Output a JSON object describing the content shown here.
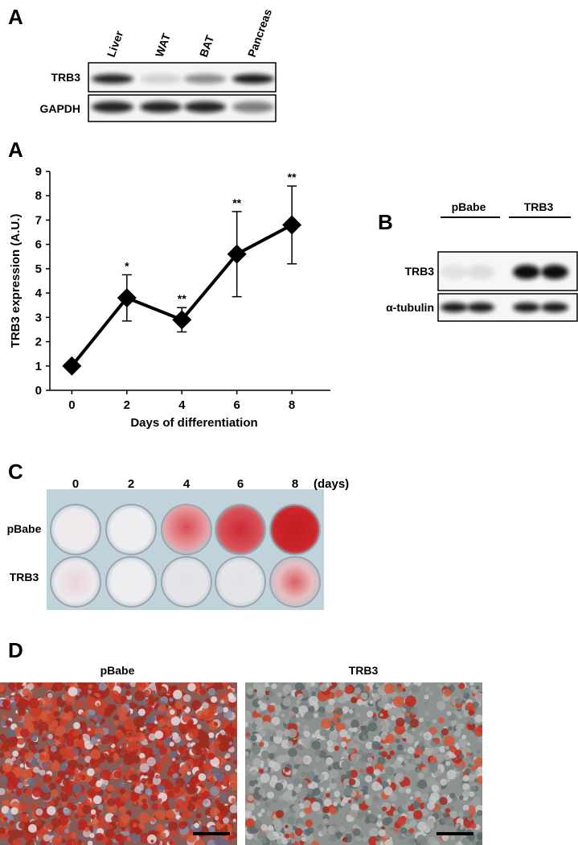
{
  "figure": {
    "panel_a": "A",
    "blot_tissue": {
      "lanes": [
        "Liver",
        "WAT",
        "BAT",
        "Pancreas"
      ],
      "rows": [
        "TRB3",
        "GAPDH"
      ]
    },
    "panel_a2": "A",
    "panel_b": "B",
    "blot_overexpression": {
      "groups": [
        "pBabe",
        "TRB3"
      ],
      "rows": [
        "TRB3",
        "α-tubulin"
      ]
    },
    "panel_c": "C",
    "plate": {
      "days": [
        "0",
        "2",
        "4",
        "6",
        "8"
      ],
      "unit": "(days)",
      "rows": [
        "pBabe",
        "TRB3"
      ]
    },
    "panel_d": "D",
    "micrographs": [
      "pBabe",
      "TRB3"
    ]
  },
  "chart_data": {
    "type": "line",
    "x": [
      0,
      2,
      4,
      6,
      8
    ],
    "values": [
      1,
      3.8,
      2.9,
      5.6,
      6.8
    ],
    "errors": [
      0,
      0.95,
      0.5,
      1.75,
      1.6
    ],
    "annotations": [
      null,
      "*",
      "**",
      "**",
      "**"
    ],
    "color": "#000000",
    "xlabel": "Days of differentiation",
    "ylabel": "TRB3 expression (A.U.)",
    "xlim": [
      -0.8,
      9.4
    ],
    "xticks": [
      0,
      2,
      4,
      6,
      8
    ],
    "ylim": [
      0,
      9
    ],
    "yticks": [
      0,
      1,
      2,
      3,
      4,
      5,
      6,
      7,
      8,
      9
    ]
  }
}
